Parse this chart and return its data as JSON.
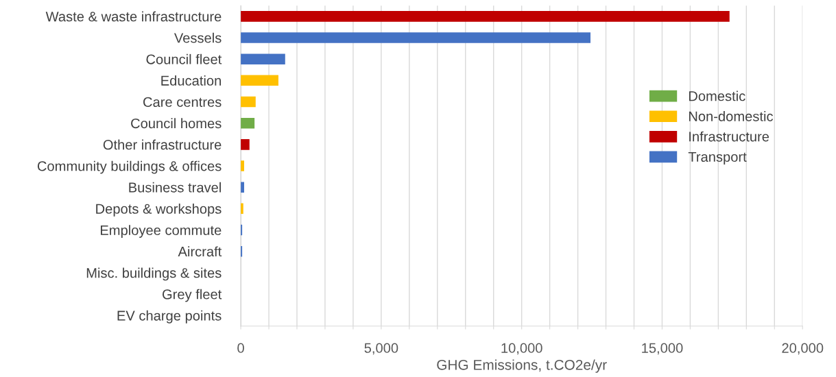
{
  "chart_data": {
    "type": "bar",
    "orientation": "horizontal",
    "stacked": true,
    "categories": [
      "Waste & waste infrastructure",
      "Vessels",
      "Council fleet",
      "Education",
      "Care centres",
      "Council homes",
      "Other infrastructure",
      "Community buildings & offices",
      "Business travel",
      "Depots & workshops",
      "Employee commute",
      "Aircraft",
      "Misc. buildings & sites",
      "Grey fleet",
      "EV charge points"
    ],
    "series": [
      {
        "name": "Domestic",
        "color": "#70ad47",
        "values": [
          null,
          null,
          null,
          null,
          null,
          490,
          null,
          null,
          null,
          null,
          null,
          null,
          null,
          null,
          null
        ]
      },
      {
        "name": "Non-domestic",
        "color": "#ffc000",
        "values": [
          null,
          null,
          null,
          1340,
          530,
          null,
          null,
          120,
          null,
          90,
          null,
          null,
          0,
          null,
          null
        ]
      },
      {
        "name": "Infrastructure",
        "color": "#c00000",
        "values": [
          17400,
          null,
          null,
          null,
          null,
          null,
          310,
          null,
          null,
          null,
          null,
          null,
          null,
          null,
          0
        ]
      },
      {
        "name": "Transport",
        "color": "#4472c4",
        "values": [
          null,
          12450,
          1580,
          null,
          null,
          null,
          null,
          null,
          120,
          null,
          50,
          50,
          null,
          0,
          null
        ]
      }
    ],
    "xlabel": "GHG Emissions, t.CO2e/yr",
    "xlim": [
      0,
      20000
    ],
    "xticks": [
      0,
      {
        "value": 1000,
        "label": null
      },
      {
        "value": 2000,
        "label": null
      },
      {
        "value": 3000,
        "label": null
      },
      {
        "value": 4000,
        "label": null
      },
      {
        "value": 5000,
        "label": "5,000"
      },
      {
        "value": 6000,
        "label": null
      },
      {
        "value": 7000,
        "label": null
      },
      {
        "value": 8000,
        "label": null
      },
      {
        "value": 9000,
        "label": null
      },
      {
        "value": 10000,
        "label": "10,000"
      },
      {
        "value": 11000,
        "label": null
      },
      {
        "value": 12000,
        "label": null
      },
      {
        "value": 13000,
        "label": null
      },
      {
        "value": 14000,
        "label": null
      },
      {
        "value": 15000,
        "label": "15,000"
      },
      {
        "value": 16000,
        "label": null
      },
      {
        "value": 17000,
        "label": null
      },
      {
        "value": 18000,
        "label": null
      },
      {
        "value": 19000,
        "label": null
      },
      {
        "value": 20000,
        "label": "20,000"
      }
    ],
    "grid": "x",
    "legend": "right"
  }
}
